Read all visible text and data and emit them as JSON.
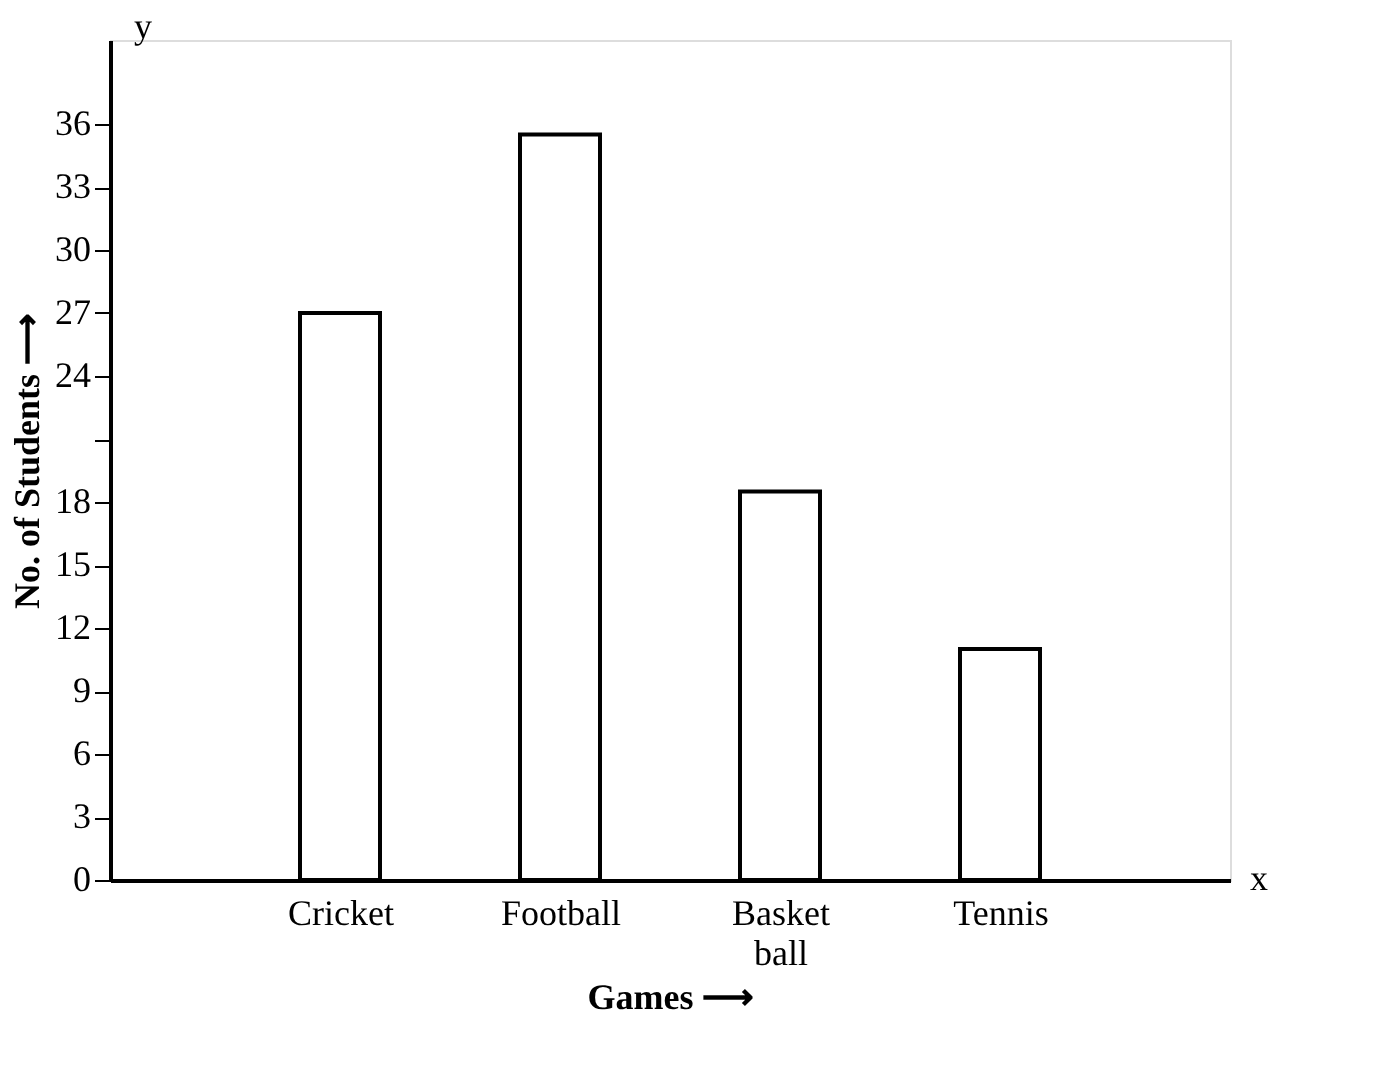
{
  "chart_data": {
    "type": "bar",
    "xlabel": "Games ⟶",
    "ylabel": "No. of Students ⟶",
    "categories": [
      "Cricket",
      "Football",
      "Basket ball",
      "Tennis"
    ],
    "series": [
      {
        "color": "#ffffff",
        "values": [
          27,
          35.5,
          18.5,
          11
        ]
      }
    ],
    "ylim": [
      0,
      40
    ],
    "yticks": [
      0,
      3,
      6,
      9,
      12,
      15,
      18,
      {
        "value": 21,
        "label": null
      },
      24,
      27,
      30,
      33,
      36
    ],
    "grid": false,
    "legend": false,
    "annotations": [
      "y",
      "x"
    ]
  }
}
